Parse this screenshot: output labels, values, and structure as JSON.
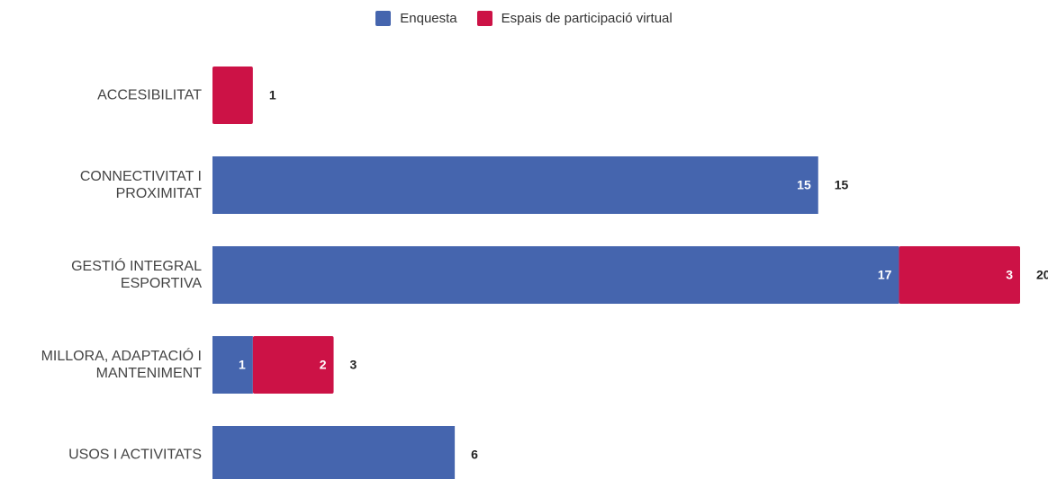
{
  "chart_data": {
    "type": "stacked-bar-horizontal",
    "categories": [
      "ACCESIBILITAT",
      "CONNECTIVITAT I PROXIMITAT",
      "GESTIÓ INTEGRAL ESPORTIVA",
      "MILLORA, ADAPTACIÓ I MANTENIMENT",
      "USOS I ACTIVITATS"
    ],
    "series": [
      {
        "name": "Enquesta",
        "color": "#4565ae",
        "values": [
          0,
          15,
          17,
          1,
          6
        ],
        "value_labels": [
          null,
          "15",
          "17",
          "1",
          null
        ]
      },
      {
        "name": "Espais de participació virtual",
        "color": "#cc1246",
        "values": [
          1,
          0,
          3,
          2,
          0
        ],
        "value_labels": [
          null,
          null,
          "3",
          "2",
          null
        ]
      }
    ],
    "totals": [
      1,
      15,
      20,
      3,
      6
    ],
    "xlim": [
      0,
      20
    ],
    "legend": "top"
  }
}
